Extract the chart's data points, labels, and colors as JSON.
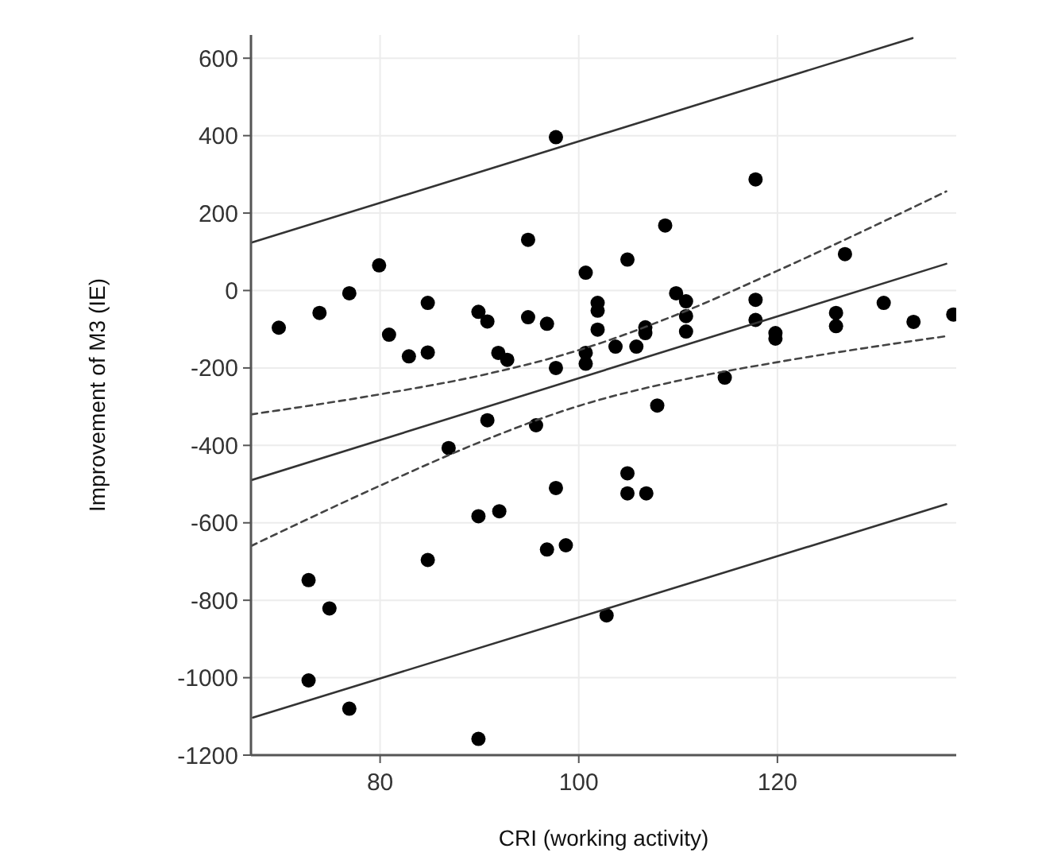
{
  "chart_data": {
    "type": "scatter",
    "xlabel": "CRI (working activity)",
    "ylabel": "Improvement of M3 (IE)",
    "xlim": [
      67,
      138
    ],
    "ylim": [
      -1200,
      660
    ],
    "xticks": [
      80,
      100,
      120
    ],
    "yticks": [
      -1200,
      -1000,
      -800,
      -600,
      -400,
      -200,
      0,
      200,
      400,
      600
    ],
    "grid": true,
    "series": [
      {
        "marker": "circle",
        "color": "#000000",
        "x": [
          69.8,
          73.9,
          76.9,
          79.9,
          80.9,
          82.9,
          84.8,
          84.8,
          89.9,
          90.8,
          91.9,
          92.8,
          94.9,
          94.9,
          96.8,
          97.7,
          97.7,
          90.8,
          95.7,
          100.7,
          101.9,
          101.9,
          101.9,
          100.7,
          100.7,
          103.7,
          104.9,
          105.8,
          106.7,
          106.7,
          108.7,
          109.8,
          110.8,
          110.8,
          110.8,
          107.9,
          114.7,
          117.8,
          117.8,
          117.8,
          119.8,
          119.8,
          125.9,
          125.9,
          126.8,
          130.7,
          133.7,
          137.7,
          72.8,
          74.9,
          72.8,
          76.9,
          86.9,
          89.9,
          92,
          84.8,
          97.7,
          96.8,
          98.7,
          89.9,
          104.9,
          104.9,
          106.8,
          102.8
        ],
        "values": [
          -96,
          -58,
          -7,
          65,
          -114,
          -170,
          -32,
          -160,
          -55,
          -80,
          -161,
          -179,
          131,
          -69,
          -86,
          396,
          -200,
          -335,
          -348,
          46,
          -32,
          -52,
          -101,
          -161,
          -189,
          -145,
          80,
          -145,
          -95,
          -110,
          168,
          -7,
          -28,
          -66,
          -106,
          -297,
          -225,
          287,
          -24,
          -76,
          -110,
          -124,
          -58,
          -92,
          94,
          -32,
          -81,
          -62,
          -748,
          -821,
          -1007,
          -1080,
          -407,
          -583,
          -570,
          -696,
          -510,
          -669,
          -658,
          -1158,
          -472,
          -524,
          -524,
          -839
        ]
      },
      {
        "type": "line",
        "marker": "none",
        "line_style": "solid",
        "color": "#333333",
        "x": [
          67,
          137
        ],
        "values": [
          -490,
          69
        ]
      },
      {
        "type": "line",
        "marker": "none",
        "line_style": "solid",
        "color": "#333333",
        "x": [
          67.1,
          133.6
        ],
        "values": [
          124,
          652
        ]
      },
      {
        "type": "line",
        "marker": "none",
        "line_style": "solid",
        "color": "#333333",
        "x": [
          67.2,
          137
        ],
        "values": [
          -1103,
          -552
        ]
      },
      {
        "type": "line",
        "marker": "none",
        "line_style": "dashed",
        "color": "#444444",
        "x": [
          67,
          80,
          90,
          100,
          110,
          120,
          130,
          137
        ],
        "values": [
          -320,
          -268,
          -220,
          -154,
          -61,
          51,
          170,
          256
        ]
      },
      {
        "type": "line",
        "marker": "none",
        "line_style": "dashed",
        "color": "#444444",
        "x": [
          67,
          80,
          90,
          100,
          110,
          120,
          130,
          137
        ],
        "values": [
          -660,
          -504,
          -392,
          -298,
          -233,
          -185,
          -144,
          -118
        ]
      }
    ]
  }
}
